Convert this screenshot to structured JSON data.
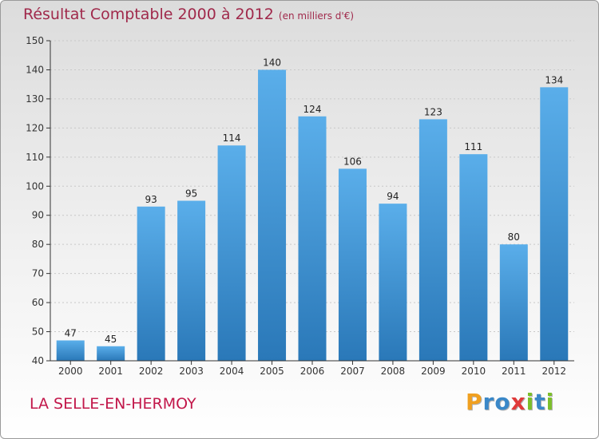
{
  "title": "Résultat Comptable 2000 à 2012",
  "unit_note": "(en milliers d'€)",
  "commune": "LA SELLE-EN-HERMOY",
  "logo": {
    "letters": [
      {
        "ch": "P",
        "color": "#f0a020"
      },
      {
        "ch": "r",
        "color": "#3a88c8"
      },
      {
        "ch": "o",
        "color": "#3a88c8"
      },
      {
        "ch": "x",
        "color": "#e03a3a"
      },
      {
        "ch": "i",
        "color": "#7cbf2a"
      },
      {
        "ch": "t",
        "color": "#3a88c8"
      },
      {
        "ch": "i",
        "color": "#7cbf2a"
      }
    ]
  },
  "colors": {
    "bar_top": "#5aaeea",
    "bar_bottom": "#2a78b8",
    "grid": "#c8c8c8",
    "axis": "#333333"
  },
  "chart_data": {
    "type": "bar",
    "categories": [
      "2000",
      "2001",
      "2002",
      "2003",
      "2004",
      "2005",
      "2006",
      "2007",
      "2008",
      "2009",
      "2010",
      "2011",
      "2012"
    ],
    "values": [
      47,
      45,
      93,
      95,
      114,
      140,
      124,
      106,
      94,
      123,
      111,
      80,
      134
    ],
    "title": "Résultat Comptable 2000 à 2012",
    "xlabel": "",
    "ylabel": "",
    "ylim": [
      40,
      150
    ],
    "yticks": [
      40,
      50,
      60,
      70,
      80,
      90,
      100,
      110,
      120,
      130,
      140,
      150
    ],
    "grid": true
  }
}
